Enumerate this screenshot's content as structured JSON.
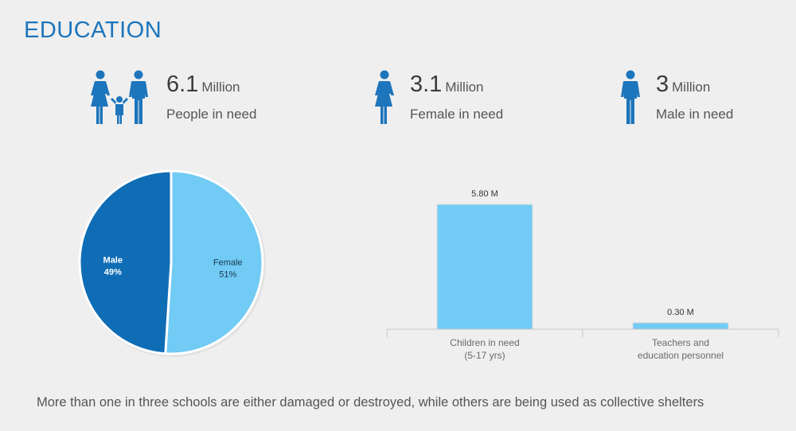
{
  "title": "EDUCATION",
  "stats": [
    {
      "value": "6.1",
      "unit": "Million",
      "label": "People in need",
      "icon": "family-icon"
    },
    {
      "value": "3.1",
      "unit": "Million",
      "label": "Female in need",
      "icon": "female-icon"
    },
    {
      "value": "3",
      "unit": "Million",
      "label": "Male in need",
      "icon": "male-icon"
    }
  ],
  "colors": {
    "title": "#1d75bc",
    "dark_blue": "#0f6db5",
    "light_blue": "#71cbf4"
  },
  "chart_data": [
    {
      "type": "pie",
      "slices": [
        {
          "label": "Male",
          "value": 49,
          "display": "49%",
          "color": "#0f6db5"
        },
        {
          "label": "Female",
          "value": 51,
          "display": "51%",
          "color": "#71cbf4"
        }
      ]
    },
    {
      "type": "bar",
      "categories": [
        "Children in need\n(5-17 yrs)",
        "Teachers and\neducation personnel"
      ],
      "values": [
        5.8,
        0.3
      ],
      "value_labels": [
        "5.80 M",
        "0.30 M"
      ],
      "ylim": [
        0,
        5.8
      ],
      "color": "#71cbf4"
    }
  ],
  "footer": "More than one in three schools are either damaged or destroyed, while others are being used as collective shelters"
}
